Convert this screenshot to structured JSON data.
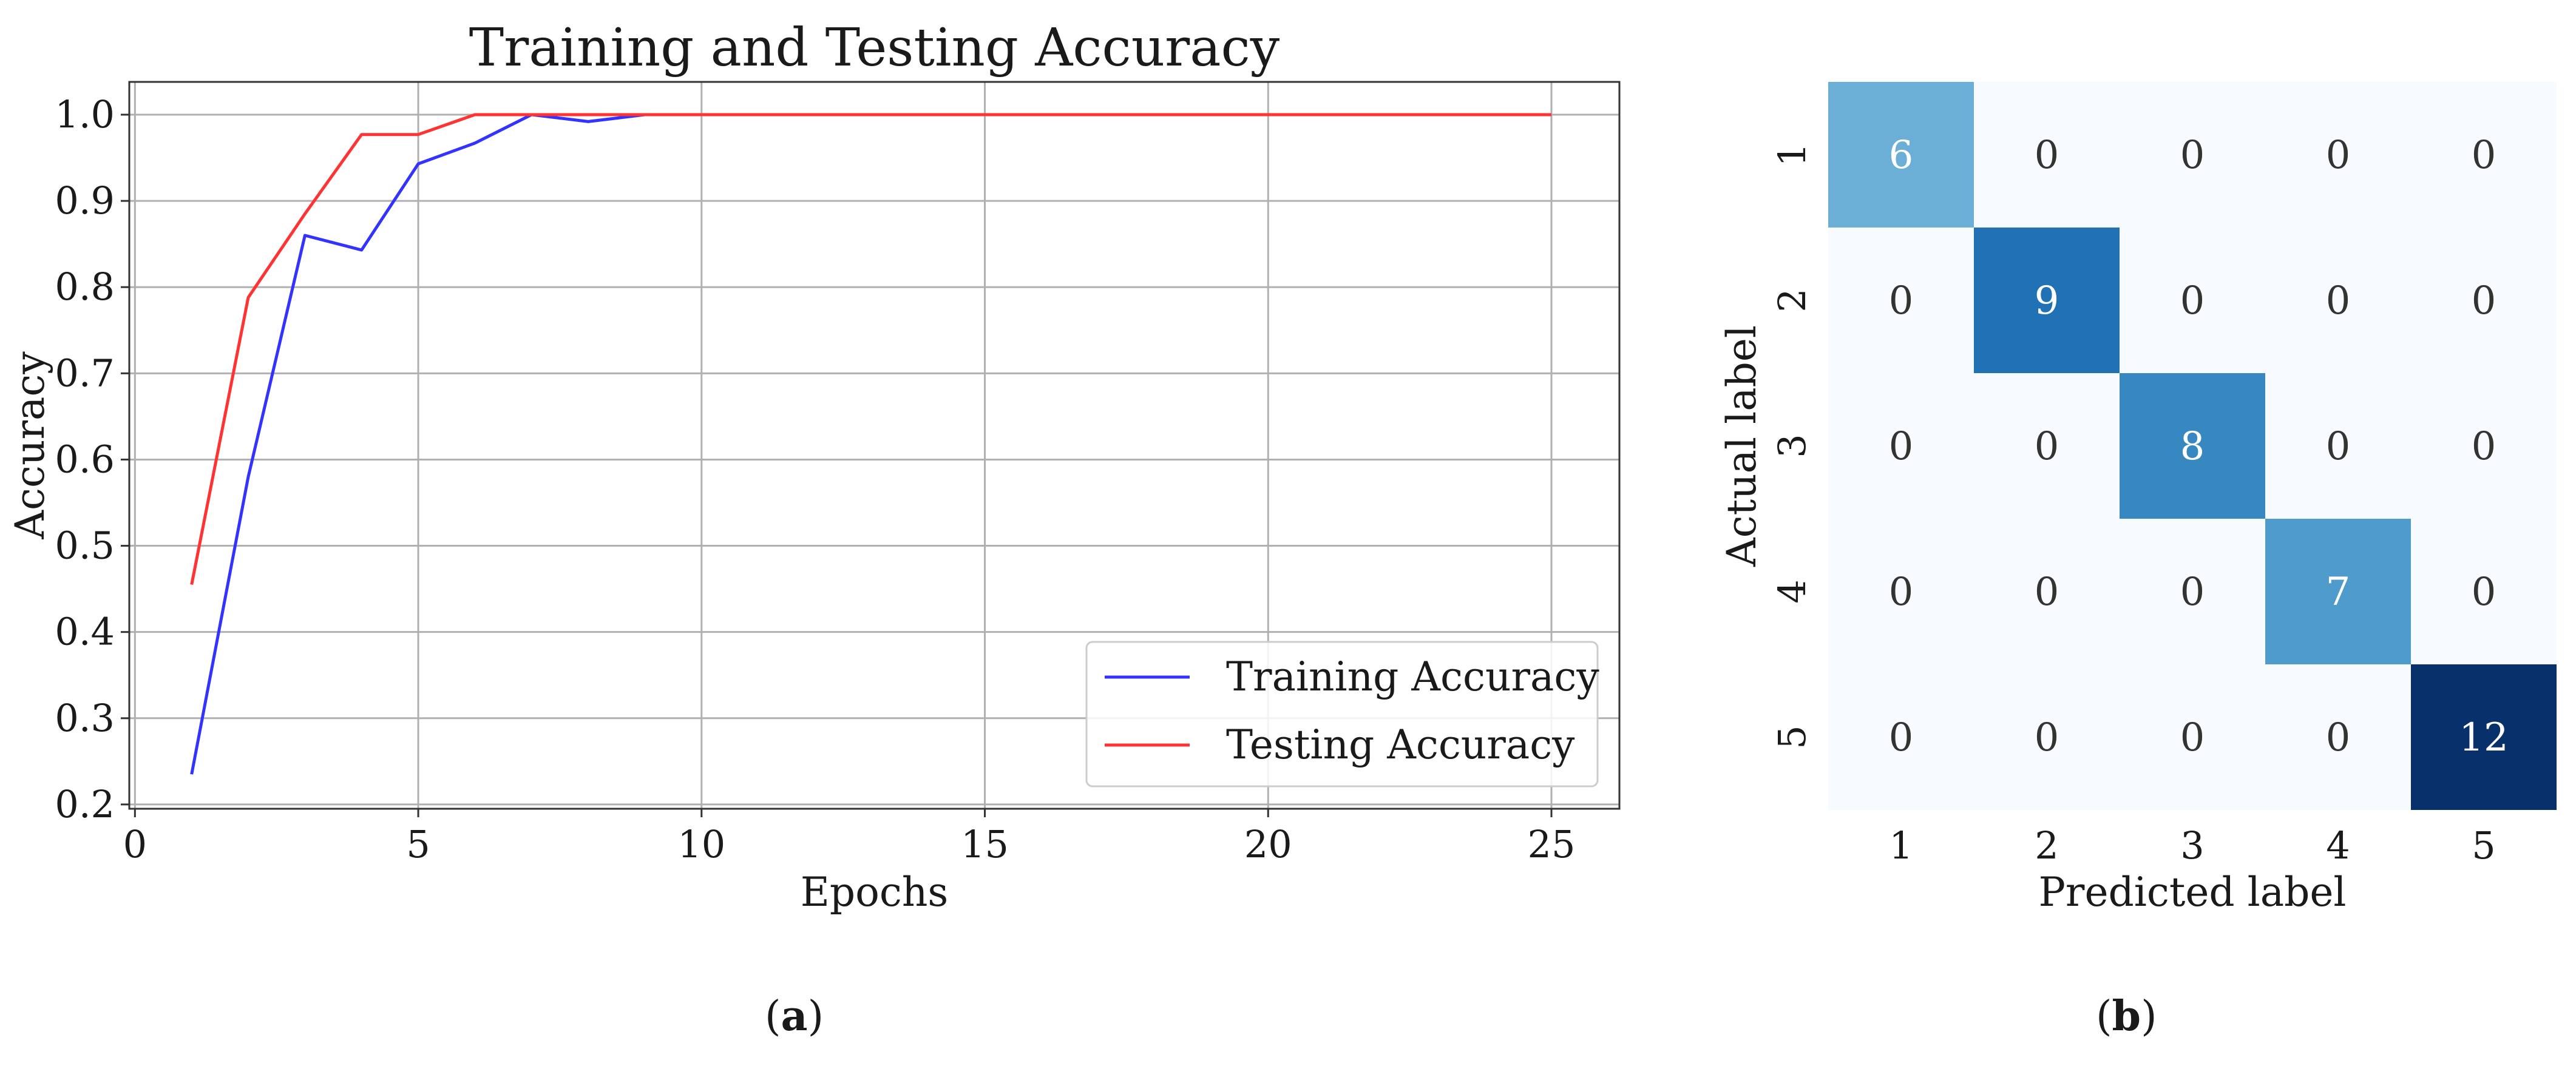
{
  "chart_data": [
    {
      "type": "line",
      "title": "Training and Testing Accuracy",
      "xlabel": "Epochs",
      "ylabel": "Accuracy",
      "xlim": [
        -0.1,
        26.2
      ],
      "ylim": [
        0.195,
        1.038
      ],
      "xticks": [
        0,
        5,
        10,
        15,
        20,
        25
      ],
      "yticks": [
        0.2,
        0.3,
        0.4,
        0.5,
        0.6,
        0.7,
        0.8,
        0.9,
        1.0
      ],
      "xtick_labels": [
        "0",
        "5",
        "10",
        "15",
        "20",
        "25"
      ],
      "ytick_labels": [
        "0.2",
        "0.3",
        "0.4",
        "0.5",
        "0.6",
        "0.7",
        "0.8",
        "0.9",
        "1.0"
      ],
      "grid": true,
      "legend_position": "lower-right",
      "x": [
        1,
        2,
        3,
        4,
        5,
        6,
        7,
        8,
        9,
        10,
        11,
        12,
        13,
        14,
        15,
        16,
        17,
        18,
        19,
        20,
        21,
        22,
        23,
        24,
        25
      ],
      "series": [
        {
          "name": "Training Accuracy",
          "color": "#3333ff",
          "values": [
            0.235,
            0.58,
            0.86,
            0.843,
            0.943,
            0.967,
            1.0,
            0.992,
            1.0,
            1.0,
            1.0,
            1.0,
            1.0,
            1.0,
            1.0,
            1.0,
            1.0,
            1.0,
            1.0,
            1.0,
            1.0,
            1.0,
            1.0,
            1.0,
            1.0
          ]
        },
        {
          "name": "Testing Accuracy",
          "color": "#ff3333",
          "values": [
            0.455,
            0.788,
            0.885,
            0.977,
            0.977,
            1.0,
            1.0,
            1.0,
            1.0,
            1.0,
            1.0,
            1.0,
            1.0,
            1.0,
            1.0,
            1.0,
            1.0,
            1.0,
            1.0,
            1.0,
            1.0,
            1.0,
            1.0,
            1.0,
            1.0
          ]
        }
      ]
    },
    {
      "type": "heatmap",
      "xlabel": "Predicted label",
      "ylabel": "Actual label",
      "x_categories": [
        "1",
        "2",
        "3",
        "4",
        "5"
      ],
      "y_categories": [
        "1",
        "2",
        "3",
        "4",
        "5"
      ],
      "values": [
        [
          6,
          0,
          0,
          0,
          0
        ],
        [
          0,
          9,
          0,
          0,
          0
        ],
        [
          0,
          0,
          8,
          0,
          0
        ],
        [
          0,
          0,
          0,
          7,
          0
        ],
        [
          0,
          0,
          0,
          0,
          12
        ]
      ],
      "colormap": "Blues",
      "cell_colors": [
        [
          "#6baed6",
          "#f7fbff",
          "#f7fbff",
          "#f7fbff",
          "#f7fbff"
        ],
        [
          "#f7fbff",
          "#2171b5",
          "#f7fbff",
          "#f7fbff",
          "#f7fbff"
        ],
        [
          "#f7fbff",
          "#f7fbff",
          "#3787c0",
          "#f7fbff",
          "#f7fbff"
        ],
        [
          "#f7fbff",
          "#f7fbff",
          "#f7fbff",
          "#4f9bcb",
          "#f7fbff"
        ],
        [
          "#f7fbff",
          "#f7fbff",
          "#f7fbff",
          "#f7fbff",
          "#08306b"
        ]
      ]
    }
  ],
  "panel_labels": [
    {
      "text": "a"
    },
    {
      "text": "b"
    }
  ]
}
